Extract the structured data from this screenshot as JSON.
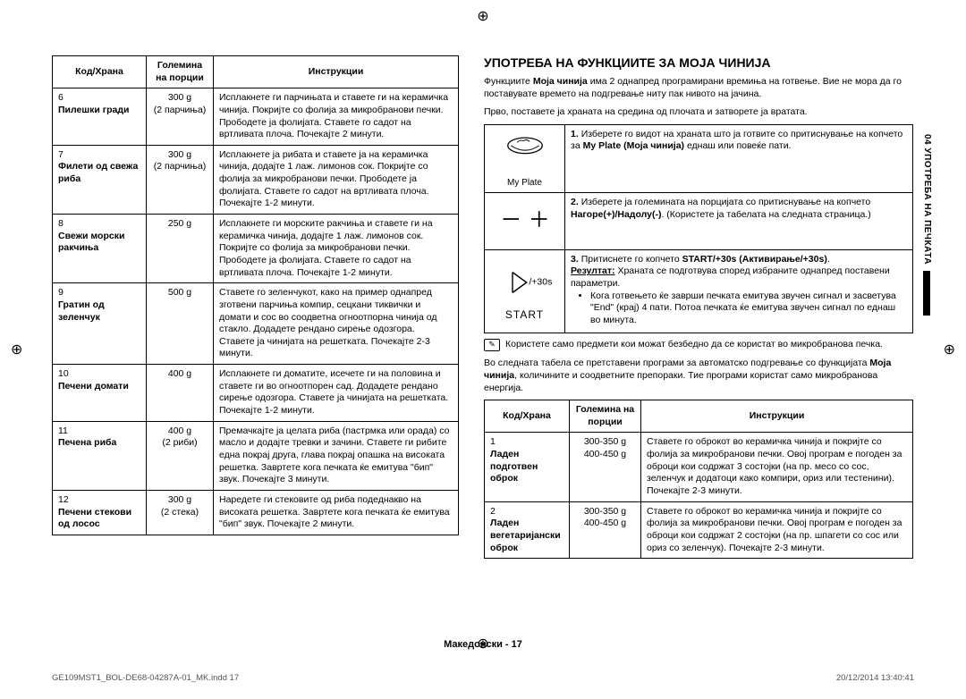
{
  "left_table": {
    "headers": [
      "Код/Храна",
      "Големина на порции",
      "Инструкции"
    ],
    "rows": [
      {
        "code": "6",
        "name": "Пилешки гради",
        "size": "300 g",
        "size2": "(2 парчиња)",
        "instr": "Исплакнете ги парчињата и ставете ги на керамичка чинија. Покријте со фолија за микробранови печки. Прободете ја фолијата. Ставете го садот на вртливата плоча. Почекајте 2 минути."
      },
      {
        "code": "7",
        "name": "Филети од свежа риба",
        "size": "300 g",
        "size2": "(2 парчиња)",
        "instr": "Исплакнете ја рибата и ставете ја на керамичка чинија, додајте 1 лаж. лимонов сок. Покријте со фолија за микробранови печки. Прободете ја фолијата. Ставете го садот на вртливата плоча. Почекајте 1-2 минути."
      },
      {
        "code": "8",
        "name": "Свежи морски ракчиња",
        "size": "250 g",
        "size2": "",
        "instr": "Исплакнете ги морските ракчиња и ставете ги на керамичка чинија, додајте 1 лаж. лимонов сок. Покријте со фолија за микробранови печки. Прободете ја фолијата. Ставете го садот на вртливата плоча. Почекајте 1-2 минути."
      },
      {
        "code": "9",
        "name": "Гратин од зеленчук",
        "size": "500 g",
        "size2": "",
        "instr": "Ставете го зеленчукот, како на пример однапред зготвени парчиња компир, сецкани тиквички и домати и сос во соодветна огноотпорна чинија од стакло. Додадете рендано сирење одозгора. Ставете ја чинијата на решетката. Почекајте 2-3 минути."
      },
      {
        "code": "10",
        "name": "Печени домати",
        "size": "400 g",
        "size2": "",
        "instr": "Исплакнете ги доматите, исечете ги на половина и ставете ги во огноотпорен сад. Додадете рендано сирење одозгора. Ставете ја чинијата на решетката. Почекајте 1-2 минути."
      },
      {
        "code": "11",
        "name": "Печена риба",
        "size": "400 g",
        "size2": "(2 риби)",
        "instr": "Премачкајте ја целата риба (пастрмка или орада) со масло и додајте тревки и зачини. Ставете ги рибите една покрај друга, глава покрај опашка на високата решетка. Завртете кога печката ќе емитува \"бип\" звук. Почекајте 3 минути."
      },
      {
        "code": "12",
        "name": "Печени стекови од лосос",
        "size": "300 g",
        "size2": "(2 стека)",
        "instr": "Наредете ги стековите од риба подеднакво на високата решетка. Завртете кога печката ќе емитува \"бип\" звук. Почекајте 2 минути."
      }
    ]
  },
  "right": {
    "title": "УПОТРЕБА НА ФУНКЦИИТЕ ЗА МОЈА ЧИНИЈА",
    "p1_a": "Функциите ",
    "p1_bold": "Моја чинија",
    "p1_b": " има 2 однапред програмирани времиња на готвење. Вие не мора да го поставувате времето на подгревање ниту пак нивото на јачина.",
    "p2": "Прво, поставете ја храната на средина од плочата и затворете ја вратата.",
    "myplate_label": "My Plate",
    "steps": [
      {
        "n": "1.",
        "t": "Изберете го видот на храната што ја готвите со притиснување на копчето за ",
        "b": "My Plate (Моја чинија)",
        "t2": " еднаш или повеќе пати."
      },
      {
        "n": "2.",
        "t": "Изберете ја големината на порцијата со притиснување на копчето ",
        "b": "Нагоре(+)/Надолу(-)",
        "t2": ". (Користете ја табелата на следната страница.)"
      },
      {
        "n": "3.",
        "t": "Притиснете го копчето ",
        "b": "START/+30s (Активирање/+30s)",
        "t2": ".",
        "res_label": "Резултат:",
        "res": " Храната се подготвува според избраните однапред поставени параметри.",
        "bul1": "Кога готвењето ќе заврши печката емитува звучен сигнал и засветува \"End\" (крај) 4 пати. Потоа печката ќе емитува звучен сигнал по еднаш во минута."
      }
    ],
    "start_label": "START",
    "start_sub": "/+30s",
    "note": "Користете само предмети кои можат безбедно да се користат во микробранова печка.",
    "p3_a": "Во следната табела се претставени програми за автоматско подгревање со функцијата ",
    "p3_bold": "Моја чинија",
    "p3_b": ", количините и соодветните препораки. Тие програми користат само микробранова енергија.",
    "table2": {
      "headers": [
        "Код/Храна",
        "Големина на порции",
        "Инструкции"
      ],
      "rows": [
        {
          "code": "1",
          "name": "Ладен подготвен оброк",
          "s1": "300-350 g",
          "s2": "400-450 g",
          "instr": "Ставете го оброкот во керамичка чинија и покријте со фолија за микробранови печки. Овој програм е погоден за оброци кои содржат 3 состојки (на пр. месо со сос, зеленчук и додатоци како компири, ориз или тестенини). Почекајте 2-3 минути."
        },
        {
          "code": "2",
          "name": "Ладен вегетаријански оброк",
          "s1": "300-350 g",
          "s2": "400-450 g",
          "instr": "Ставете го оброкот во керамичка чинија и покријте со фолија за микробранови печки. Овој програм е погоден за оброци кои содржат 2 состојки (на пр. шпагети со сос или ориз со зеленчук). Почекајте 2-3 минути."
        }
      ]
    }
  },
  "side_tab_text": "04 УПОТРЕБА НА ПЕЧКАТА",
  "page_label": "Македонски - 17",
  "footer_left": "GE109MST1_BOL-DE68-04287A-01_MK.indd   17",
  "footer_right": "20/12/2014   13:40:41"
}
